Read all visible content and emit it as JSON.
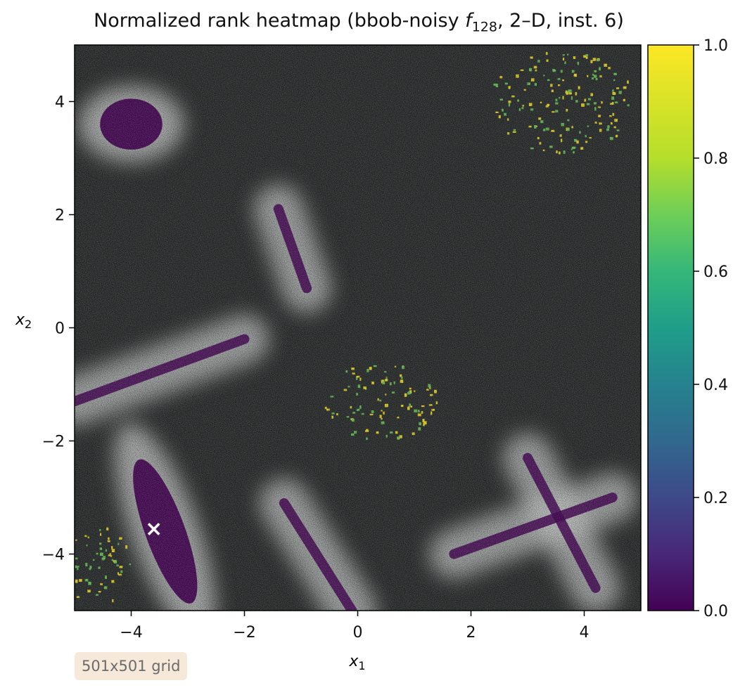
{
  "title": {
    "prefix": "Normalized rank heatmap (bbob-noisy ",
    "func_letter": "f",
    "func_sub": "128",
    "suffix": ", 2–D, inst. 6)"
  },
  "grid_badge": "501x501 grid",
  "chart_data": {
    "type": "heatmap",
    "xlabel": "x1",
    "ylabel": "x2",
    "xlim": [
      -5,
      5
    ],
    "ylim": [
      -5,
      5
    ],
    "x_ticks": [
      -4,
      -2,
      0,
      2,
      4
    ],
    "y_ticks": [
      -4,
      -2,
      0,
      2,
      4
    ],
    "x_tick_labels": [
      "−4",
      "−2",
      "0",
      "2",
      "4"
    ],
    "y_tick_labels": [
      "−4",
      "−2",
      "0",
      "2",
      "4"
    ],
    "colorbar": {
      "colormap": "viridis",
      "range": [
        0,
        1
      ],
      "ticks": [
        0.0,
        0.2,
        0.4,
        0.6,
        0.8,
        1.0
      ],
      "tick_labels": [
        "0.0",
        "0.2",
        "0.4",
        "0.6",
        "0.8",
        "1.0"
      ]
    },
    "grid_resolution": [
      501,
      501
    ],
    "best_marker": {
      "x": -3.6,
      "y": -3.55,
      "symbol": "×",
      "color": "#ffffff"
    },
    "low_rank_regions": [
      {
        "shape": "ellipse",
        "cx": -4.0,
        "cy": 3.6,
        "rx": 0.55,
        "ry": 0.45,
        "angle": 0
      },
      {
        "shape": "ellipse",
        "cx": -3.4,
        "cy": -3.6,
        "rx": 0.35,
        "ry": 1.35,
        "angle": -20
      }
    ],
    "low_rank_ridges": [
      {
        "from": [
          -1.4,
          2.1
        ],
        "to": [
          -0.9,
          0.7
        ]
      },
      {
        "from": [
          -5.0,
          -1.3
        ],
        "to": [
          -2.0,
          -0.2
        ]
      },
      {
        "from": [
          -1.3,
          -3.1
        ],
        "to": [
          -0.1,
          -5.0
        ]
      },
      {
        "from": [
          1.7,
          -4.0
        ],
        "to": [
          4.5,
          -3.0
        ]
      },
      {
        "from": [
          3.0,
          -2.3
        ],
        "to": [
          4.2,
          -4.6
        ]
      }
    ],
    "high_rank_regions": [
      {
        "cx": 3.6,
        "cy": 4.0,
        "rx": 1.3,
        "ry": 0.9
      },
      {
        "cx": -4.6,
        "cy": -4.2,
        "rx": 0.6,
        "ry": 0.7
      },
      {
        "cx": 0.4,
        "cy": -1.3,
        "rx": 1.0,
        "ry": 0.7
      }
    ],
    "colors": {
      "background_dark": "#2a2d2d",
      "background_light": "#c9cbcb",
      "low": "#440154",
      "high": "#fde725",
      "mid": "#6ccd5a"
    }
  }
}
